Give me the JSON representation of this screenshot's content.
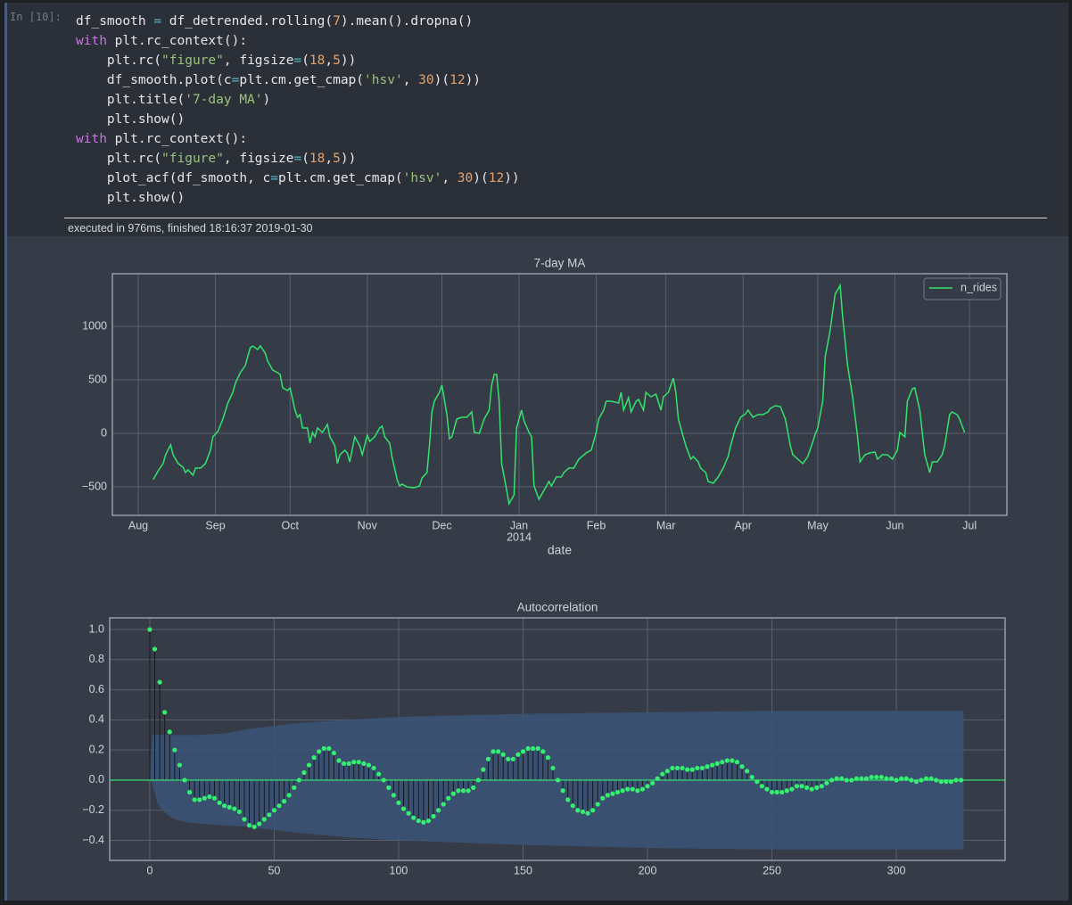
{
  "cell": {
    "prompt": "In [10]:",
    "code": [
      "df_smooth = df_detrended.rolling(7).mean().dropna()",
      "with plt.rc_context():",
      "    plt.rc(\"figure\", figsize=(18,5))",
      "    df_smooth.plot(c=plt.cm.get_cmap('hsv', 30)(12))",
      "    plt.title('7-day MA')",
      "    plt.show()",
      "with plt.rc_context():",
      "    plt.rc(\"figure\", figsize=(18,5))",
      "    plot_acf(df_smooth, c=plt.cm.get_cmap('hsv', 30)(12))",
      "    plt.show()"
    ],
    "status": "executed in 976ms, finished 18:16:37 2019-01-30"
  },
  "chart_data": [
    {
      "type": "line",
      "title": "7-day MA",
      "x_label": "date",
      "grid": true,
      "legend": "upper right",
      "xlim": [
        -10.4,
        349
      ],
      "ylim": [
        -767,
        1492
      ],
      "xticks": [
        {
          "value": 0,
          "label": "Aug"
        },
        {
          "value": 31,
          "label": "Sep"
        },
        {
          "value": 61,
          "label": "Oct"
        },
        {
          "value": 92,
          "label": "Nov"
        },
        {
          "value": 122,
          "label": "Dec"
        },
        {
          "value": 153,
          "label": "Jan"
        },
        {
          "value": 184,
          "label": "Feb"
        },
        {
          "value": 212,
          "label": "Mar"
        },
        {
          "value": 243,
          "label": "Apr"
        },
        {
          "value": 273,
          "label": "May"
        },
        {
          "value": 304,
          "label": "Jun"
        },
        {
          "value": 334,
          "label": "Jul"
        }
      ],
      "x_sublabels": [
        {
          "value": 153,
          "label": "2014"
        }
      ],
      "yticks": [
        {
          "value": -500,
          "label": "−500"
        },
        0,
        500,
        1000
      ],
      "x": [
        6,
        8,
        10,
        11,
        13,
        14,
        16,
        18,
        19,
        20,
        22,
        23,
        25,
        27,
        29,
        30,
        32,
        34,
        36,
        38,
        39,
        41,
        43,
        45,
        46,
        48,
        49,
        51,
        52,
        54,
        56,
        57,
        58,
        60,
        61,
        63,
        64,
        65,
        66,
        68,
        69,
        70,
        71,
        72,
        74,
        76,
        77,
        79,
        80,
        81,
        83,
        84,
        85,
        87,
        89,
        90,
        92,
        93,
        95,
        97,
        98,
        99,
        101,
        102,
        104,
        105,
        106,
        108,
        110,
        111,
        113,
        114,
        116,
        117,
        118,
        119,
        121,
        122,
        124,
        125,
        126,
        128,
        130,
        132,
        134,
        135,
        137,
        139,
        141,
        142,
        143,
        144,
        145,
        146,
        148,
        149,
        151,
        152,
        154,
        155,
        157,
        158,
        159,
        161,
        162,
        164,
        165,
        166,
        168,
        170,
        171,
        173,
        175,
        177,
        180,
        182,
        184,
        185,
        187,
        188,
        190,
        193,
        194,
        195,
        197,
        198,
        200,
        201,
        203,
        204,
        206,
        208,
        210,
        211,
        213,
        215,
        216,
        217,
        219,
        220,
        222,
        223,
        225,
        226,
        228,
        229,
        231,
        233,
        235,
        237,
        238,
        240,
        242,
        244,
        245,
        247,
        249,
        251,
        253,
        254,
        256,
        258,
        260,
        262,
        263,
        265,
        267,
        269,
        271,
        272,
        273,
        275,
        276,
        278,
        279,
        280,
        282,
        283,
        285,
        287,
        289,
        290,
        292,
        294,
        296,
        297,
        299,
        301,
        303,
        305,
        306,
        308,
        309,
        311,
        312,
        314,
        315,
        316,
        318,
        319,
        321,
        323,
        324,
        326,
        327,
        329,
        330,
        332
      ],
      "series": [
        {
          "name": "n_rides",
          "color": "#33e36b",
          "values": [
            -433,
            -350,
            -283,
            -200,
            -108,
            -200,
            -283,
            -317,
            -367,
            -342,
            -392,
            -325,
            -325,
            -283,
            -158,
            -33,
            17,
            133,
            283,
            383,
            467,
            567,
            633,
            800,
            817,
            783,
            817,
            750,
            675,
            592,
            567,
            550,
            425,
            400,
            425,
            217,
            150,
            175,
            50,
            50,
            -92,
            8,
            -33,
            50,
            8,
            83,
            -33,
            -117,
            -283,
            -200,
            -158,
            -183,
            -267,
            -33,
            -117,
            -200,
            -17,
            -75,
            -33,
            50,
            67,
            -33,
            -92,
            -225,
            -433,
            -492,
            -475,
            -500,
            -508,
            -508,
            -492,
            -417,
            -367,
            -117,
            200,
            300,
            383,
            450,
            175,
            -50,
            -33,
            133,
            150,
            150,
            200,
            8,
            0,
            133,
            217,
            450,
            550,
            550,
            300,
            -283,
            -533,
            -658,
            -575,
            50,
            217,
            117,
            8,
            -33,
            -492,
            -617,
            -575,
            -492,
            -450,
            -492,
            -408,
            -408,
            -367,
            -325,
            -325,
            -242,
            -183,
            -158,
            8,
            133,
            217,
            300,
            300,
            283,
            383,
            217,
            333,
            200,
            300,
            317,
            217,
            383,
            342,
            367,
            217,
            342,
            383,
            517,
            383,
            133,
            -33,
            -117,
            -242,
            -217,
            -267,
            -325,
            -367,
            -450,
            -467,
            -408,
            -325,
            -217,
            -117,
            50,
            150,
            183,
            217,
            150,
            175,
            175,
            200,
            233,
            258,
            250,
            133,
            -117,
            -200,
            -242,
            -283,
            -217,
            -83,
            -8,
            50,
            300,
            717,
            967,
            1133,
            1300,
            1383,
            1092,
            633,
            342,
            -33,
            -267,
            -200,
            -183,
            -175,
            -242,
            -200,
            -200,
            -242,
            -158,
            8,
            -33,
            300,
            417,
            425,
            217,
            8,
            -200,
            -367,
            -267,
            -267,
            -200,
            -117,
            175,
            200,
            175,
            133,
            8
          ]
        }
      ]
    },
    {
      "type": "stem",
      "title": "Autocorrelation",
      "grid": true,
      "stem_color": "#15181c",
      "xlim": [
        -16.1,
        343.7
      ],
      "ylim": [
        -0.533,
        1.077
      ],
      "xticks": [
        0,
        50,
        100,
        150,
        200,
        250,
        300
      ],
      "yticks": [
        {
          "value": -0.4,
          "label": "−0.4"
        },
        {
          "value": -0.2,
          "label": "−0.2"
        },
        {
          "value": 0,
          "label": "0.0"
        },
        {
          "value": 0.2,
          "label": "0.2"
        },
        {
          "value": 0.4,
          "label": "0.4"
        },
        {
          "value": 0.6,
          "label": "0.6"
        },
        {
          "value": 0.8,
          "label": "0.8"
        },
        {
          "value": 1,
          "label": "1.0"
        }
      ],
      "confidence_band": {
        "color": "#3b5478",
        "x": [
          0,
          1,
          3,
          5,
          8,
          10,
          15,
          20,
          30,
          40,
          50,
          60,
          80,
          100,
          150,
          200,
          250,
          300,
          327
        ],
        "upper": [
          0,
          0.3,
          0.3,
          0.3,
          0.3,
          0.3,
          0.3,
          0.3,
          0.31,
          0.34,
          0.36,
          0.38,
          0.4,
          0.42,
          0.44,
          0.45,
          0.46,
          0.46,
          0.46
        ],
        "lower": [
          0,
          -0.02,
          -0.15,
          -0.2,
          -0.24,
          -0.26,
          -0.28,
          -0.29,
          -0.3,
          -0.31,
          -0.33,
          -0.35,
          -0.38,
          -0.4,
          -0.43,
          -0.45,
          -0.46,
          -0.46,
          -0.46
        ]
      },
      "x": [
        0,
        2,
        4,
        6,
        8,
        10,
        12,
        14,
        16,
        18,
        20,
        22,
        24,
        26,
        28,
        30,
        32,
        34,
        36,
        38,
        40,
        42,
        44,
        46,
        48,
        50,
        52,
        54,
        56,
        58,
        60,
        62,
        64,
        66,
        68,
        70,
        72,
        74,
        76,
        78,
        80,
        82,
        84,
        86,
        88,
        90,
        92,
        94,
        96,
        98,
        100,
        102,
        104,
        106,
        108,
        110,
        112,
        114,
        116,
        118,
        120,
        122,
        124,
        126,
        128,
        130,
        132,
        134,
        136,
        138,
        140,
        142,
        144,
        146,
        148,
        150,
        152,
        154,
        156,
        158,
        160,
        162,
        164,
        166,
        168,
        170,
        172,
        174,
        176,
        178,
        180,
        182,
        184,
        186,
        188,
        190,
        192,
        194,
        196,
        198,
        200,
        202,
        204,
        206,
        208,
        210,
        212,
        214,
        216,
        218,
        220,
        222,
        224,
        226,
        228,
        230,
        232,
        234,
        236,
        238,
        240,
        242,
        244,
        246,
        248,
        250,
        252,
        254,
        256,
        258,
        260,
        262,
        264,
        266,
        268,
        270,
        272,
        274,
        276,
        278,
        280,
        282,
        284,
        286,
        288,
        290,
        292,
        294,
        296,
        298,
        300,
        302,
        304,
        306,
        308,
        310,
        312,
        314,
        316,
        318,
        320,
        322,
        324,
        326
      ],
      "series": [
        {
          "color": "#33f06e",
          "values": [
            1,
            0.87,
            0.65,
            0.45,
            0.32,
            0.2,
            0.1,
            0,
            -0.08,
            -0.13,
            -0.13,
            -0.12,
            -0.11,
            -0.12,
            -0.15,
            -0.17,
            -0.18,
            -0.19,
            -0.21,
            -0.26,
            -0.3,
            -0.31,
            -0.29,
            -0.26,
            -0.23,
            -0.2,
            -0.17,
            -0.14,
            -0.1,
            -0.05,
            0,
            0.05,
            0.1,
            0.15,
            0.19,
            0.21,
            0.21,
            0.18,
            0.13,
            0.11,
            0.11,
            0.12,
            0.12,
            0.11,
            0.1,
            0.08,
            0.04,
            0,
            -0.05,
            -0.1,
            -0.15,
            -0.19,
            -0.22,
            -0.25,
            -0.27,
            -0.28,
            -0.27,
            -0.24,
            -0.2,
            -0.16,
            -0.12,
            -0.09,
            -0.07,
            -0.07,
            -0.07,
            -0.05,
            0,
            0.07,
            0.14,
            0.19,
            0.19,
            0.17,
            0.14,
            0.14,
            0.17,
            0.19,
            0.21,
            0.21,
            0.21,
            0.19,
            0.15,
            0.08,
            0,
            -0.07,
            -0.13,
            -0.17,
            -0.2,
            -0.21,
            -0.22,
            -0.2,
            -0.16,
            -0.12,
            -0.1,
            -0.09,
            -0.08,
            -0.07,
            -0.06,
            -0.06,
            -0.07,
            -0.06,
            -0.04,
            -0.02,
            0.01,
            0.04,
            0.06,
            0.08,
            0.08,
            0.08,
            0.07,
            0.07,
            0.08,
            0.08,
            0.09,
            0.1,
            0.11,
            0.12,
            0.13,
            0.13,
            0.12,
            0.09,
            0.06,
            0.02,
            -0.01,
            -0.04,
            -0.06,
            -0.08,
            -0.08,
            -0.08,
            -0.07,
            -0.06,
            -0.04,
            -0.04,
            -0.05,
            -0.06,
            -0.05,
            -0.04,
            -0.02,
            0,
            0.01,
            0.01,
            0,
            0,
            0.01,
            0.01,
            0.01,
            0.02,
            0.02,
            0.02,
            0.01,
            0.01,
            0,
            0.01,
            0.01,
            0,
            -0.01,
            0,
            0.01,
            0.01,
            0,
            -0.01,
            -0.01,
            -0.01,
            0,
            0
          ]
        }
      ]
    }
  ]
}
